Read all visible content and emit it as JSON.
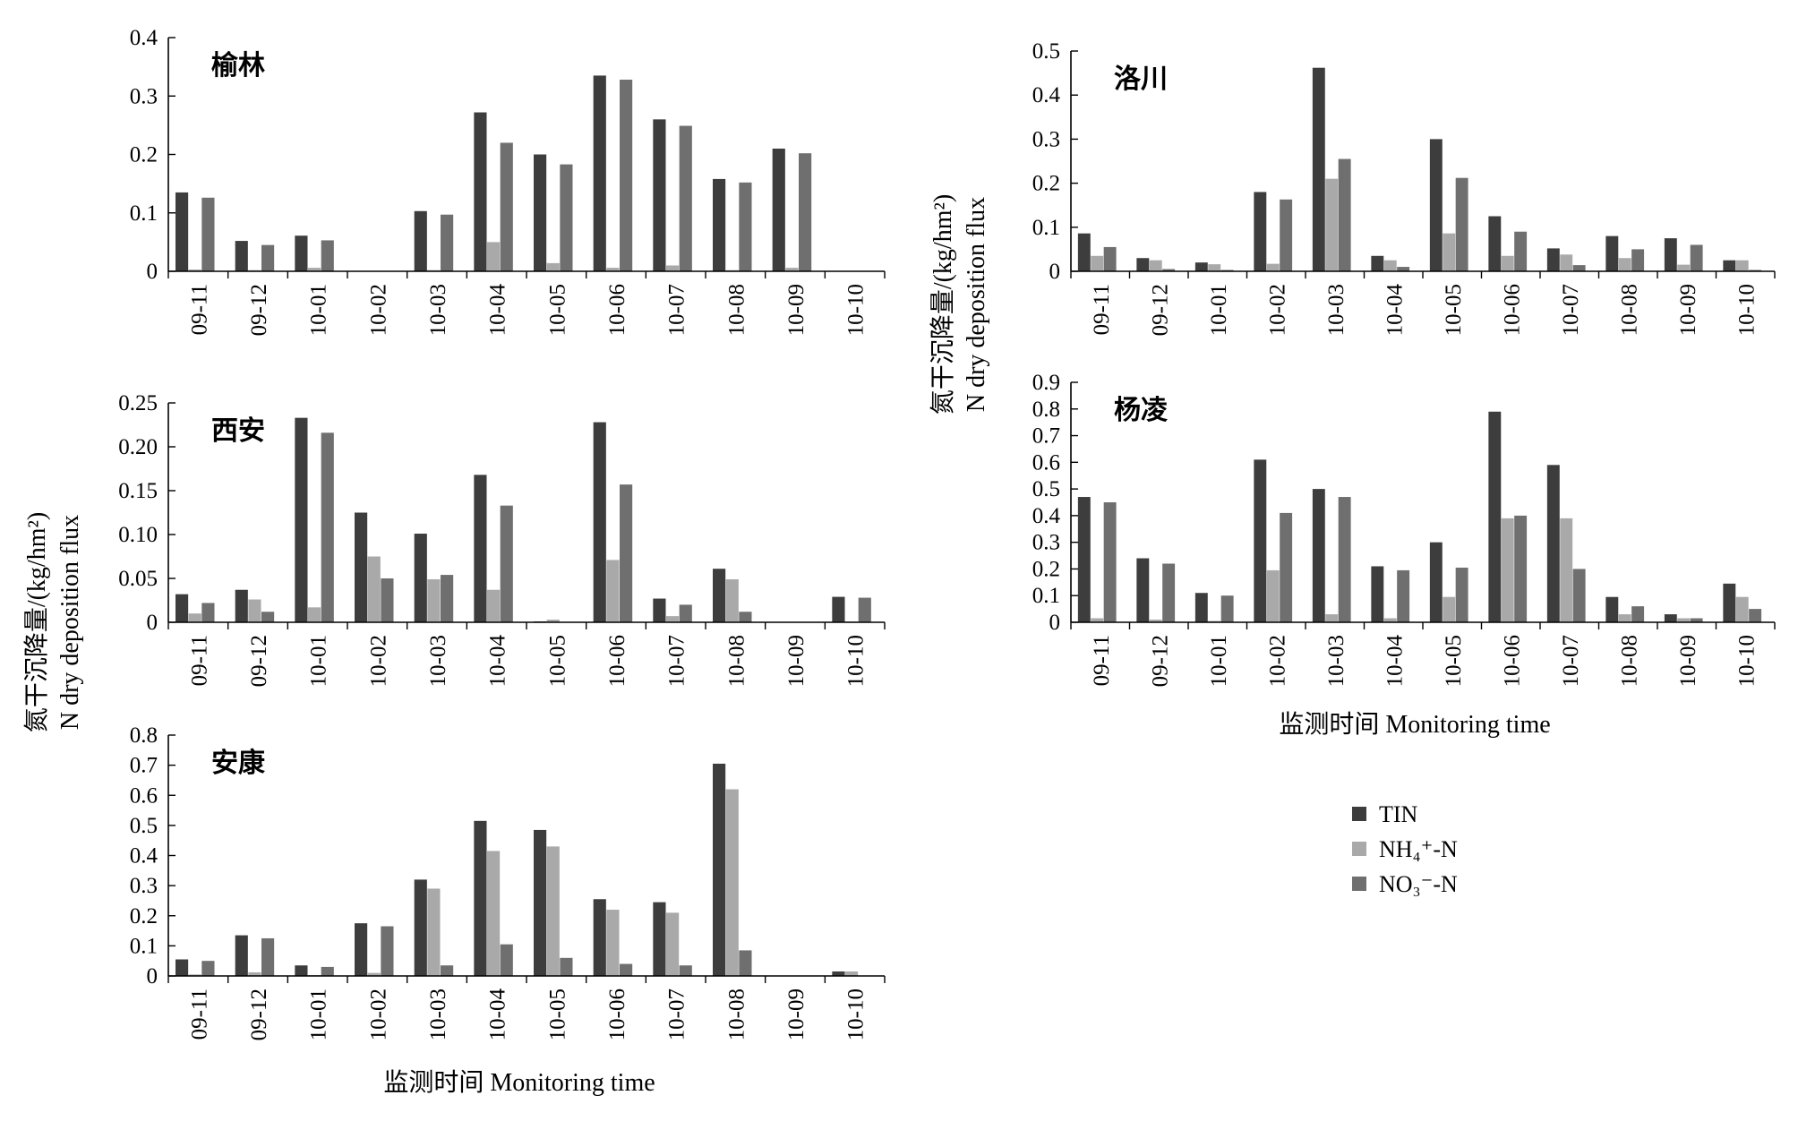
{
  "figure": {
    "ylabel_cn": "氮干沉降量/(kg/hm²)",
    "ylabel_en": "N dry deposition flux",
    "xlabel": "监测时间 Monitoring time"
  },
  "legend": {
    "tin": "TIN",
    "nh4": "NH₄⁺-N",
    "no3": "NO₃⁻-N"
  },
  "colors": {
    "TIN": "#3d3d3d",
    "NH4": "#a9a9a9",
    "NO3": "#6f6f6f"
  },
  "chart_data": [
    {
      "type": "bar",
      "title": "榆林",
      "categories": [
        "09-11",
        "09-12",
        "10-01",
        "10-02",
        "10-03",
        "10-04",
        "10-05",
        "10-06",
        "10-07",
        "10-08",
        "10-09",
        "10-10"
      ],
      "ylim": [
        0,
        0.4
      ],
      "yticks": [
        "0",
        "0.1",
        "0.2",
        "0.3",
        "0.4"
      ],
      "series": [
        {
          "name": "TIN",
          "values": [
            0.135,
            0.052,
            0.061,
            0,
            0.103,
            0.272,
            0.2,
            0.335,
            0.26,
            0.158,
            0.21,
            0
          ]
        },
        {
          "name": "NH4",
          "values": [
            0.003,
            0.002,
            0.006,
            0,
            0.002,
            0.05,
            0.014,
            0.006,
            0.01,
            0.002,
            0.006,
            0
          ]
        },
        {
          "name": "NO3",
          "values": [
            0.126,
            0.045,
            0.053,
            0,
            0.097,
            0.22,
            0.183,
            0.328,
            0.249,
            0.152,
            0.202,
            0
          ]
        }
      ]
    },
    {
      "type": "bar",
      "title": "洛川",
      "categories": [
        "09-11",
        "09-12",
        "10-01",
        "10-02",
        "10-03",
        "10-04",
        "10-05",
        "10-06",
        "10-07",
        "10-08",
        "10-09",
        "10-10"
      ],
      "ylim": [
        0,
        0.5
      ],
      "yticks": [
        "0",
        "0.1",
        "0.2",
        "0.3",
        "0.4",
        "0.5"
      ],
      "series": [
        {
          "name": "TIN",
          "values": [
            0.086,
            0.03,
            0.02,
            0.18,
            0.462,
            0.035,
            0.3,
            0.125,
            0.052,
            0.08,
            0.075,
            0.025
          ]
        },
        {
          "name": "NH4",
          "values": [
            0.035,
            0.025,
            0.016,
            0.017,
            0.21,
            0.025,
            0.086,
            0.035,
            0.038,
            0.03,
            0.015,
            0.025
          ]
        },
        {
          "name": "NO3",
          "values": [
            0.055,
            0.005,
            0.003,
            0.163,
            0.255,
            0.01,
            0.212,
            0.09,
            0.014,
            0.05,
            0.06,
            0.003
          ]
        }
      ]
    },
    {
      "type": "bar",
      "title": "西安",
      "categories": [
        "09-11",
        "09-12",
        "10-01",
        "10-02",
        "10-03",
        "10-04",
        "10-05",
        "10-06",
        "10-07",
        "10-08",
        "10-09",
        "10-10"
      ],
      "ylim": [
        0,
        0.25
      ],
      "yticks": [
        "0",
        "0.05",
        "0.10",
        "0.15",
        "0.20",
        "0.25"
      ],
      "series": [
        {
          "name": "TIN",
          "values": [
            0.032,
            0.037,
            0.233,
            0.125,
            0.101,
            0.168,
            0.001,
            0.228,
            0.027,
            0.061,
            0,
            0.029
          ]
        },
        {
          "name": "NH4",
          "values": [
            0.01,
            0.026,
            0.017,
            0.075,
            0.049,
            0.037,
            0.003,
            0.071,
            0.007,
            0.049,
            0,
            0.001
          ]
        },
        {
          "name": "NO3",
          "values": [
            0.022,
            0.012,
            0.216,
            0.05,
            0.054,
            0.133,
            0,
            0.157,
            0.02,
            0.012,
            0,
            0.028
          ]
        }
      ]
    },
    {
      "type": "bar",
      "title": "杨凌",
      "categories": [
        "09-11",
        "09-12",
        "10-01",
        "10-02",
        "10-03",
        "10-04",
        "10-05",
        "10-06",
        "10-07",
        "10-08",
        "10-09",
        "10-10"
      ],
      "ylim": [
        0,
        0.9
      ],
      "yticks": [
        "0",
        "0.1",
        "0.2",
        "0.3",
        "0.4",
        "0.5",
        "0.6",
        "0.7",
        "0.8",
        "0.9"
      ],
      "series": [
        {
          "name": "TIN",
          "values": [
            0.47,
            0.24,
            0.11,
            0.61,
            0.5,
            0.21,
            0.3,
            0.79,
            0.59,
            0.095,
            0.03,
            0.145
          ]
        },
        {
          "name": "NH4",
          "values": [
            0.015,
            0.01,
            0.005,
            0.195,
            0.03,
            0.015,
            0.095,
            0.39,
            0.39,
            0.03,
            0.015,
            0.095
          ]
        },
        {
          "name": "NO3",
          "values": [
            0.45,
            0.22,
            0.1,
            0.41,
            0.47,
            0.195,
            0.205,
            0.4,
            0.2,
            0.06,
            0.015,
            0.05
          ]
        }
      ]
    },
    {
      "type": "bar",
      "title": "安康",
      "categories": [
        "09-11",
        "09-12",
        "10-01",
        "10-02",
        "10-03",
        "10-04",
        "10-05",
        "10-06",
        "10-07",
        "10-08",
        "10-09",
        "10-10"
      ],
      "ylim": [
        0,
        0.8
      ],
      "yticks": [
        "0",
        "0.1",
        "0.2",
        "0.3",
        "0.4",
        "0.5",
        "0.6",
        "0.7",
        "0.8"
      ],
      "series": [
        {
          "name": "TIN",
          "values": [
            0.055,
            0.135,
            0.035,
            0.175,
            0.32,
            0.515,
            0.485,
            0.255,
            0.245,
            0.705,
            0,
            0.015
          ]
        },
        {
          "name": "NH4",
          "values": [
            0.005,
            0.012,
            0.003,
            0.01,
            0.29,
            0.415,
            0.43,
            0.22,
            0.21,
            0.62,
            0,
            0.015
          ]
        },
        {
          "name": "NO3",
          "values": [
            0.05,
            0.125,
            0.03,
            0.165,
            0.035,
            0.105,
            0.06,
            0.04,
            0.035,
            0.085,
            0,
            0
          ]
        }
      ]
    }
  ]
}
